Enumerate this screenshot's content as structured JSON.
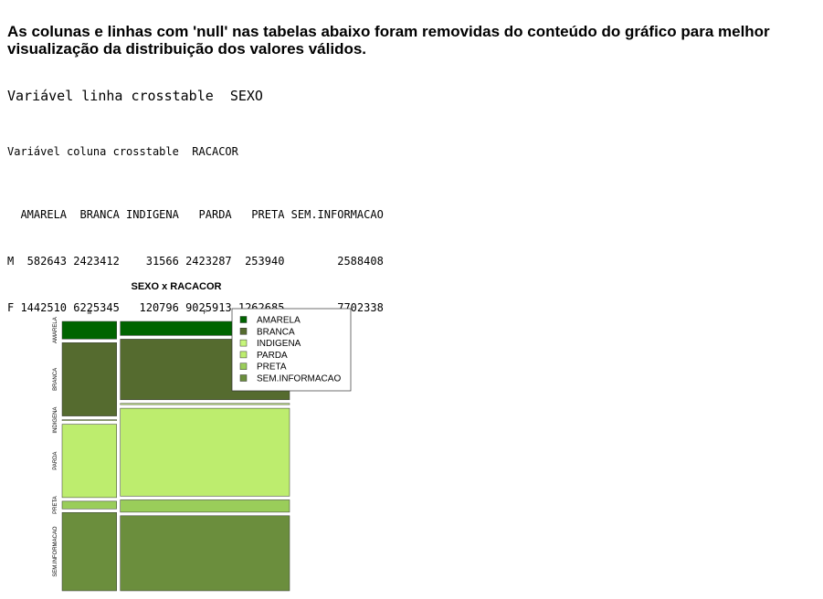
{
  "heading": "As colunas e linhas com 'null' nas tabelas abaixo foram removidas do conteúdo do gráfico para melhor visualização da distribuição dos valores válidos.",
  "row_var_line": "Variável linha crosstable  SEXO",
  "col_var_line": "Variável coluna crosstable  RACACOR",
  "table_lines": [
    "  AMARELA  BRANCA INDIGENA   PARDA   PRETA SEM.INFORMACAO",
    "M  582643 2423412    31566 2423287  253940        2588408",
    "F 1442510 6225345   120796 9025913 1262685        7702338"
  ],
  "chart_data": {
    "type": "mosaic",
    "title": "SEXO x RACACOR",
    "x_categories": [
      "M",
      "F"
    ],
    "y_categories": [
      "AMARELA",
      "BRANCA",
      "INDIGENA",
      "PARDA",
      "PRETA",
      "SEM.INFORMACAO"
    ],
    "series": [
      {
        "name": "M",
        "values": [
          582643,
          2423412,
          31566,
          2423287,
          253940,
          2588408
        ]
      },
      {
        "name": "F",
        "values": [
          1442510,
          6225345,
          120796,
          9025913,
          1262685,
          7702338
        ]
      }
    ],
    "legend_position": "top-right",
    "colors": {
      "AMARELA": "#006400",
      "BRANCA": "#556B2F",
      "INDIGENA": "#C6F67B",
      "PARDA": "#BDED6E",
      "PRETA": "#9ACD5A",
      "SEM.INFORMACAO": "#6B8E3D"
    }
  }
}
